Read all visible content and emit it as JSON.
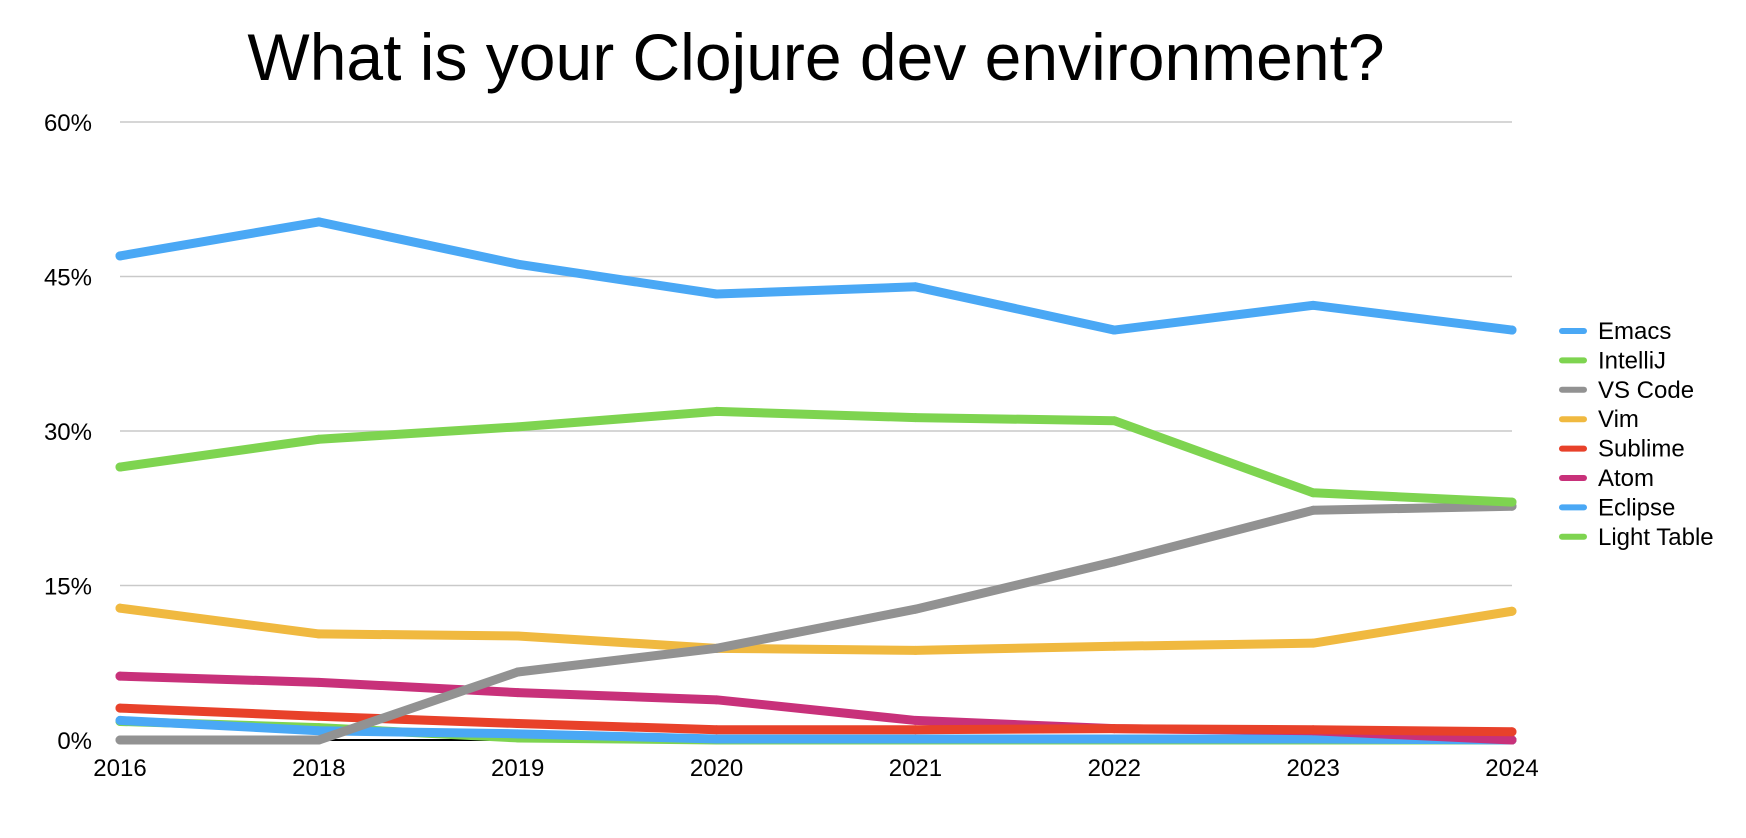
{
  "chart_data": {
    "type": "line",
    "title": "What is your Clojure dev environment?",
    "xlabel": "",
    "ylabel": "",
    "categories": [
      "2016",
      "2018",
      "2019",
      "2020",
      "2021",
      "2022",
      "2023",
      "2024"
    ],
    "ylim": [
      0,
      60
    ],
    "yticks": [
      0,
      15,
      30,
      45,
      60
    ],
    "ytick_labels": [
      "0%",
      "15%",
      "30%",
      "45%",
      "60%"
    ],
    "grid": true,
    "legend_position": "right",
    "series": [
      {
        "name": "Light Table",
        "color": "#7ed450",
        "values": [
          1.8,
          1.2,
          0.2,
          0,
          0,
          0,
          0,
          0
        ]
      },
      {
        "name": "Eclipse",
        "color": "#4aa8f5",
        "values": [
          1.9,
          0.9,
          0.6,
          0.1,
          0.1,
          0.1,
          0.1,
          0
        ]
      },
      {
        "name": "Atom",
        "color": "#c8317a",
        "values": [
          6.2,
          5.6,
          4.6,
          3.9,
          1.9,
          1.1,
          0.9,
          0
        ]
      },
      {
        "name": "Sublime",
        "color": "#e8412a",
        "values": [
          3.1,
          2.3,
          1.6,
          1.0,
          1.0,
          1.1,
          1.0,
          0.8
        ]
      },
      {
        "name": "Vim",
        "color": "#f0b940",
        "values": [
          12.8,
          10.3,
          10.1,
          8.9,
          8.7,
          9.1,
          9.4,
          12.5
        ]
      },
      {
        "name": "VS Code",
        "color": "#929292",
        "values": [
          0,
          0,
          6.6,
          8.9,
          12.7,
          17.3,
          22.3,
          22.7
        ]
      },
      {
        "name": "IntelliJ",
        "color": "#7ed450",
        "values": [
          26.5,
          29.2,
          30.4,
          31.9,
          31.3,
          31.0,
          24.0,
          23.1
        ]
      },
      {
        "name": "Emacs",
        "color": "#4aa8f5",
        "values": [
          47.0,
          50.3,
          46.2,
          43.3,
          44.0,
          39.8,
          42.2,
          39.8
        ]
      }
    ],
    "legend_order": [
      "Emacs",
      "IntelliJ",
      "VS Code",
      "Vim",
      "Sublime",
      "Atom",
      "Eclipse",
      "Light Table"
    ]
  }
}
